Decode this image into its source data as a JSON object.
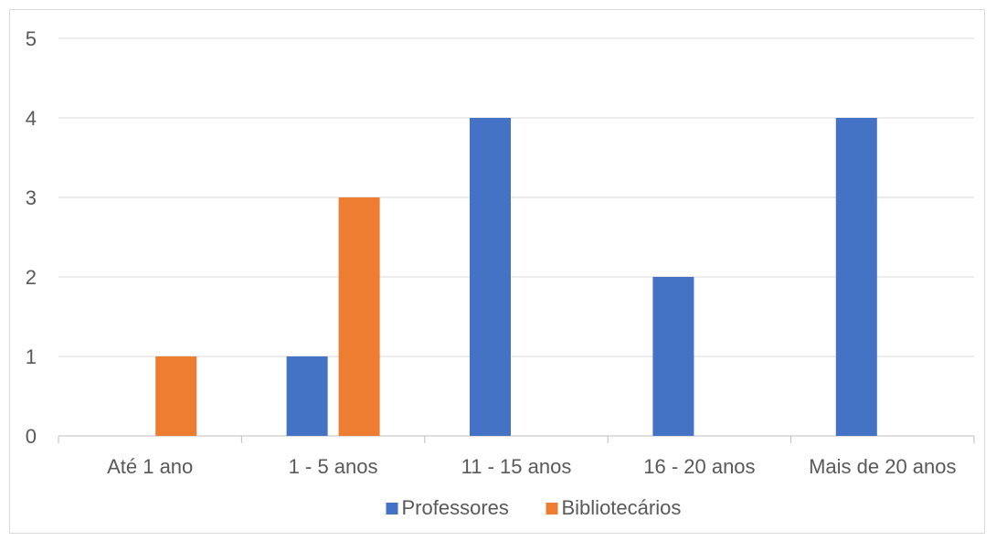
{
  "chart_data": {
    "type": "bar",
    "title": "",
    "xlabel": "",
    "ylabel": "",
    "categories": [
      "Até 1 ano",
      "1 - 5 anos",
      "11 - 15 anos",
      "16 - 20 anos",
      "Mais de 20 anos"
    ],
    "series": [
      {
        "name": "Professores",
        "color": "#4472c4",
        "values": [
          0,
          1,
          4,
          2,
          4
        ]
      },
      {
        "name": "Bibliotecários",
        "color": "#ed7d31",
        "values": [
          1,
          3,
          0,
          0,
          0
        ]
      }
    ],
    "ylim": [
      0,
      5
    ],
    "yticks": [
      "0",
      "1",
      "2",
      "3",
      "4",
      "5"
    ],
    "grid": true,
    "legend_position": "bottom"
  }
}
